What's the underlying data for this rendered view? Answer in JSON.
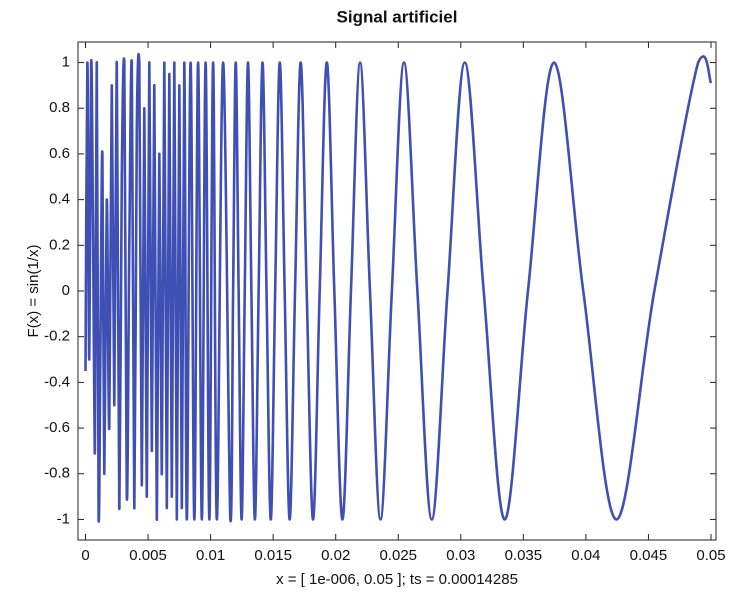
{
  "chart_data": {
    "type": "line",
    "title": "Signal artificiel",
    "xlabel": "x = [ 1e-006, 0.05 ]; ts = 0.00014285",
    "ylabel": "F(x) = sin(1/x)",
    "color": "#3f4fb4",
    "xlim": [
      -0.0006,
      0.0504
    ],
    "ylim": [
      -1.09,
      1.09
    ],
    "xticks": [
      0,
      0.005,
      0.01,
      0.015,
      0.02,
      0.025,
      0.03,
      0.035,
      0.04,
      0.045,
      0.05
    ],
    "yticks": [
      -1,
      -0.8,
      -0.6,
      -0.4,
      -0.2,
      0,
      0.2,
      0.4,
      0.6,
      0.8,
      1
    ],
    "x": [
      0,
      0.00015,
      0.0003,
      0.00045,
      0.0006,
      0.00075,
      0.0009,
      0.00105,
      0.0012,
      0.00135,
      0.0015,
      0.0017,
      0.0019,
      0.0021,
      0.0023,
      0.0025,
      0.0027,
      0.0029,
      0.0031,
      0.0033,
      0.0035,
      0.0037,
      0.0039,
      0.0041,
      0.0043,
      0.0045,
      0.0047,
      0.0049,
      0.0051,
      0.0053,
      0.0055,
      0.0057,
      0.0059,
      0.0061,
      0.0063,
      0.0065,
      0.0067,
      0.0069,
      0.0071,
      0.0073,
      0.0075,
      0.0077,
      0.0079,
      0.0081,
      0.0084,
      0.0087,
      0.009,
      0.0093,
      0.0096,
      0.0099,
      0.0102,
      0.0105,
      0.011,
      0.01158,
      0.0118,
      0.01201,
      0.01224,
      0.01248,
      0.01273,
      0.01299,
      0.01326,
      0.01354,
      0.01384,
      0.01415,
      0.01447,
      0.01481,
      0.01516,
      0.01553,
      0.01592,
      0.01632,
      0.01675,
      0.0172,
      0.01768,
      0.01819,
      0.01872,
      0.01929,
      0.01989,
      0.02054,
      0.02122,
      0.02195,
      0.02274,
      0.02358,
      0.02449,
      0.02546,
      0.02653,
      0.02768,
      0.02894,
      0.03032,
      0.03183,
      0.03351,
      0.03537,
      0.03745,
      0.03979,
      0.04244,
      0.04547,
      0.04897,
      0.05
    ],
    "values": [
      -0.35,
      1,
      -0.3,
      1,
      0.3,
      -0.7,
      1,
      -1,
      -0.2,
      0.6,
      -0.8,
      0.4,
      -0.6,
      0.9,
      -0.5,
      1,
      -0.95,
      0.5,
      1,
      -0.9,
      0.2,
      1,
      -0.95,
      0.7,
      1,
      -0.85,
      0.8,
      -0.9,
      1,
      -0.7,
      0.9,
      -1,
      0.6,
      -0.8,
      1,
      -0.95,
      0.95,
      -0.9,
      1,
      -1,
      0.9,
      -0.95,
      1,
      -1,
      1,
      -1,
      1,
      -1,
      1,
      -1,
      1,
      -1,
      1,
      -1,
      0,
      1,
      0,
      -1,
      0,
      1,
      0,
      -1,
      0,
      1,
      0,
      -1,
      0,
      1,
      0,
      -1,
      0,
      1,
      0,
      -1,
      0,
      1,
      0,
      -1,
      0,
      1,
      0,
      -1,
      0,
      1,
      0,
      -1,
      0,
      1,
      0,
      -1,
      0,
      1,
      0,
      -1,
      0,
      1,
      0.91
    ]
  }
}
